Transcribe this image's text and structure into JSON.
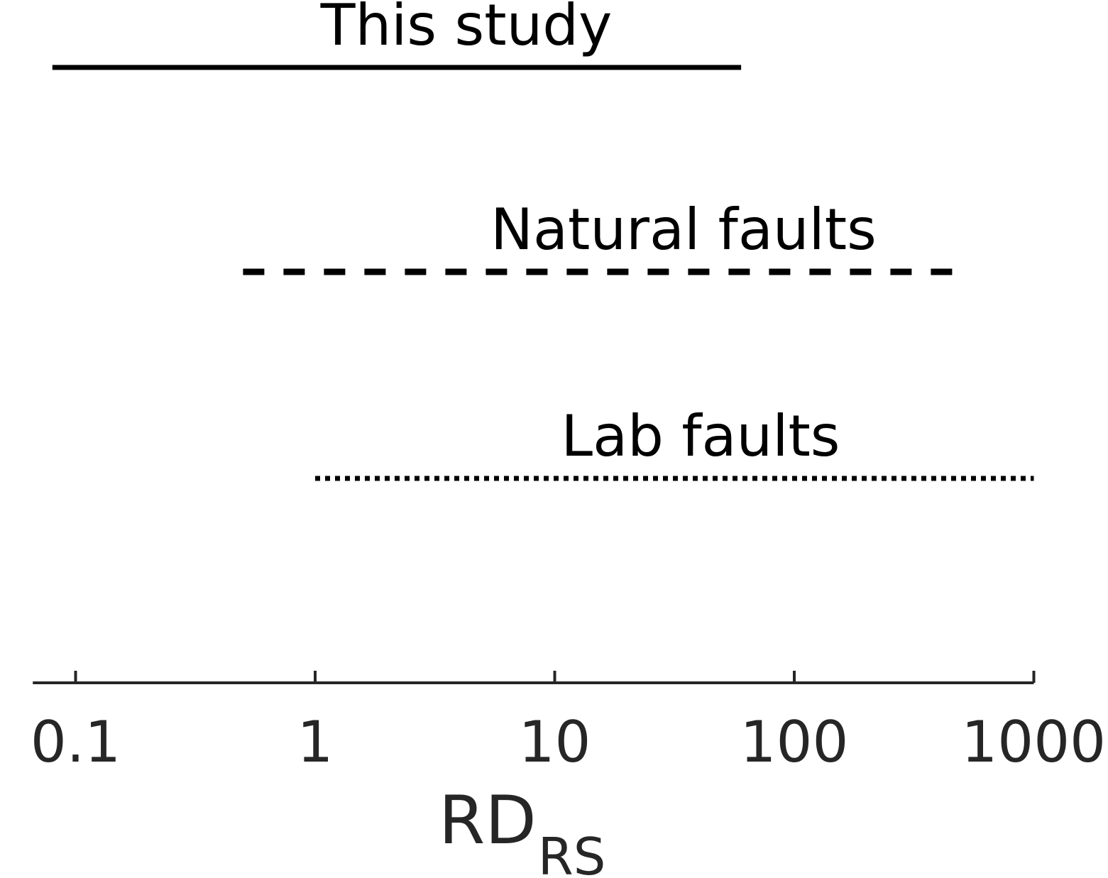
{
  "chart_data": {
    "type": "range",
    "x_scale": "log",
    "xlim": [
      0.07,
      1000
    ],
    "xlabel": {
      "main": "RD",
      "subscript": "RS"
    },
    "x_ticks": [
      {
        "value": 0.1,
        "label": "0.1"
      },
      {
        "value": 1,
        "label": "1"
      },
      {
        "value": 10,
        "label": "10"
      },
      {
        "value": 100,
        "label": "100"
      },
      {
        "value": 1000,
        "label": "1000"
      }
    ],
    "series": [
      {
        "name": "This study",
        "x_range": [
          0.08,
          60
        ],
        "line_style": "solid"
      },
      {
        "name": "Natural faults",
        "x_range": [
          0.5,
          500
        ],
        "line_style": "dashed"
      },
      {
        "name": "Lab faults",
        "x_range": [
          1,
          1000
        ],
        "line_style": "dotted"
      }
    ],
    "grid": false,
    "colors": {
      "line": "#000000",
      "axis": "#262626",
      "background": "#ffffff"
    }
  }
}
